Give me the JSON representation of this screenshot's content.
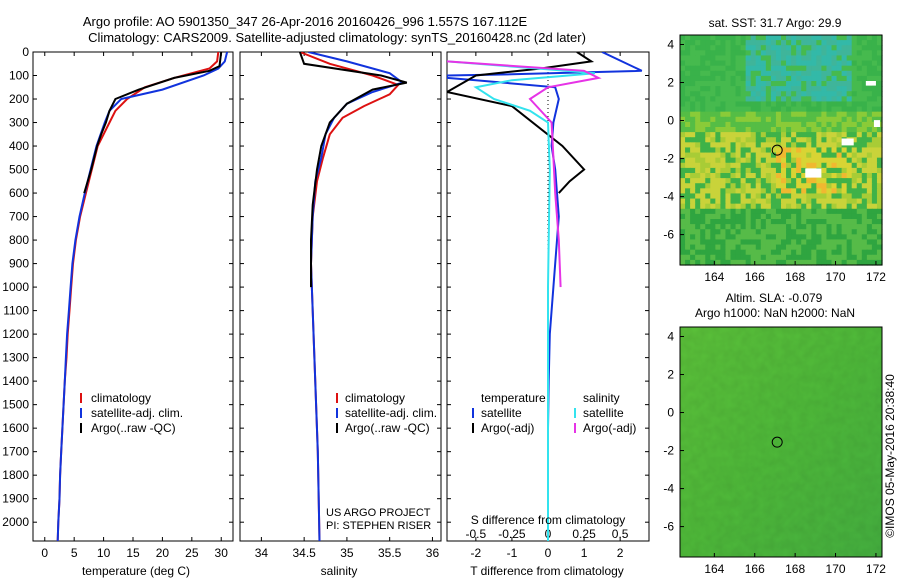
{
  "header": {
    "line1": "Argo profile: AO 5901350_347 26-Apr-2016 20160426_996 1.557S 167.112E",
    "line2": "Climatology: CARS2009. Satellite-adjusted climatology: synTS_20160428.nc (2d later)"
  },
  "colors": {
    "climatology": "#dd1111",
    "satellite": "#1133dd",
    "argo": "#000000",
    "sal_satellite": "#33e3ee",
    "sal_argo": "#e633e6"
  },
  "chart_data": [
    {
      "type": "line",
      "id": "temperature",
      "xlabel": "temperature (deg C)",
      "xticks": [
        0,
        5,
        10,
        15,
        20,
        25,
        30
      ],
      "xlim": [
        -2,
        32
      ],
      "ylim": [
        2080,
        0
      ],
      "yticks": [
        0,
        100,
        200,
        300,
        400,
        500,
        600,
        700,
        800,
        900,
        1000,
        1100,
        1200,
        1300,
        1400,
        1500,
        1600,
        1700,
        1800,
        1900,
        2000
      ],
      "legend": [
        "climatology",
        "satellite-adj. clim.",
        "Argo(..raw -QC)"
      ],
      "series": [
        {
          "name": "climatology",
          "color_key": "climatology",
          "points": [
            [
              29.5,
              0
            ],
            [
              29.3,
              40
            ],
            [
              28,
              70
            ],
            [
              22,
              110
            ],
            [
              17,
              150
            ],
            [
              14,
              200
            ],
            [
              12,
              250
            ],
            [
              11,
              300
            ],
            [
              10,
              350
            ],
            [
              9,
              400
            ],
            [
              8,
              500
            ],
            [
              7,
              600
            ],
            [
              6,
              700
            ],
            [
              5.3,
              800
            ],
            [
              4.8,
              900
            ],
            [
              4.5,
              1000
            ],
            [
              4.2,
              1100
            ],
            [
              3.9,
              1200
            ],
            [
              3.7,
              1300
            ],
            [
              3.4,
              1400
            ],
            [
              3.2,
              1500
            ],
            [
              3,
              1600
            ],
            [
              2.8,
              1700
            ],
            [
              2.6,
              1800
            ],
            [
              2.5,
              1900
            ],
            [
              2.3,
              2000
            ],
            [
              2.2,
              2080
            ]
          ]
        },
        {
          "name": "satellite-adj. clim.",
          "color_key": "satellite",
          "points": [
            [
              31,
              0
            ],
            [
              30.6,
              40
            ],
            [
              29.5,
              70
            ],
            [
              27,
              100
            ],
            [
              20,
              160
            ],
            [
              13,
              200
            ],
            [
              11,
              250
            ],
            [
              10.2,
              300
            ],
            [
              9.5,
              350
            ],
            [
              8.8,
              400
            ],
            [
              7.8,
              500
            ],
            [
              6.8,
              600
            ],
            [
              5.9,
              700
            ],
            [
              5.2,
              800
            ],
            [
              4.7,
              900
            ],
            [
              4.4,
              1000
            ],
            [
              4.1,
              1100
            ],
            [
              3.8,
              1200
            ],
            [
              3.6,
              1300
            ],
            [
              3.4,
              1400
            ],
            [
              3.2,
              1500
            ],
            [
              3,
              1600
            ],
            [
              2.8,
              1700
            ],
            [
              2.6,
              1800
            ],
            [
              2.5,
              1900
            ],
            [
              2.3,
              2000
            ],
            [
              2.2,
              2080
            ]
          ]
        },
        {
          "name": "Argo(..raw -QC)",
          "color_key": "argo",
          "points": [
            [
              30,
              0
            ],
            [
              29.7,
              60
            ],
            [
              28,
              80
            ],
            [
              22,
              110
            ],
            [
              16,
              160
            ],
            [
              12,
              200
            ],
            [
              11,
              250
            ],
            [
              10.4,
              300
            ],
            [
              9.6,
              350
            ],
            [
              8.9,
              400
            ],
            [
              7.9,
              500
            ],
            [
              6.7,
              600
            ]
          ]
        }
      ],
      "annotations": []
    },
    {
      "type": "line",
      "id": "salinity",
      "xlabel": "salinity",
      "xticks": [
        34,
        34.5,
        35,
        35.5,
        36
      ],
      "xlim": [
        33.75,
        36.1
      ],
      "ylim": [
        2080,
        0
      ],
      "legend": [
        "climatology",
        "satellite-adj. clim.",
        "Argo(..raw -QC)"
      ],
      "series": [
        {
          "name": "climatology",
          "color_key": "climatology",
          "points": [
            [
              34.45,
              0
            ],
            [
              34.8,
              50
            ],
            [
              35.3,
              100
            ],
            [
              35.6,
              140
            ],
            [
              35.5,
              180
            ],
            [
              35.2,
              230
            ],
            [
              34.95,
              280
            ],
            [
              34.8,
              350
            ],
            [
              34.72,
              450
            ],
            [
              34.65,
              550
            ],
            [
              34.6,
              700
            ],
            [
              34.58,
              900
            ],
            [
              34.6,
              1100
            ],
            [
              34.62,
              1300
            ],
            [
              34.64,
              1500
            ],
            [
              34.66,
              1700
            ],
            [
              34.67,
              1900
            ],
            [
              34.68,
              2080
            ]
          ]
        },
        {
          "name": "satellite-adj. clim.",
          "color_key": "satellite",
          "points": [
            [
              34.55,
              0
            ],
            [
              35,
              40
            ],
            [
              35.5,
              90
            ],
            [
              35.65,
              130
            ],
            [
              35.3,
              170
            ],
            [
              35.0,
              220
            ],
            [
              34.85,
              280
            ],
            [
              34.75,
              350
            ],
            [
              34.7,
              450
            ],
            [
              34.63,
              550
            ],
            [
              34.6,
              700
            ],
            [
              34.58,
              900
            ],
            [
              34.6,
              1100
            ],
            [
              34.62,
              1300
            ],
            [
              34.64,
              1500
            ],
            [
              34.66,
              1700
            ],
            [
              34.67,
              1900
            ],
            [
              34.68,
              2080
            ]
          ]
        },
        {
          "name": "Argo(..raw -QC)",
          "color_key": "argo",
          "points": [
            [
              34.45,
              0
            ],
            [
              34.5,
              50
            ],
            [
              35.4,
              100
            ],
            [
              35.7,
              130
            ],
            [
              35.3,
              160
            ],
            [
              35.0,
              220
            ],
            [
              34.8,
              300
            ],
            [
              34.7,
              400
            ],
            [
              34.65,
              500
            ],
            [
              34.6,
              650
            ],
            [
              34.58,
              800
            ],
            [
              34.58,
              1000
            ]
          ]
        }
      ],
      "annotations": [
        "US ARGO PROJECT",
        "PI: STEPHEN RISER"
      ]
    },
    {
      "type": "line",
      "id": "difference",
      "xlabel": "T difference from climatology",
      "xlabel2": "S difference from climatology",
      "xticks": [
        -2,
        -1,
        0,
        1,
        2
      ],
      "xticks2": [
        "-0.5",
        "-0.25",
        "0",
        "0.25",
        "0.5"
      ],
      "xlim": [
        -2.8,
        2.8
      ],
      "ylim": [
        2080,
        0
      ],
      "legend_groups": [
        {
          "title": "temperature",
          "items": [
            "satellite",
            "Argo(-adj)"
          ]
        },
        {
          "title": "salinity",
          "items": [
            "satellite",
            "Argo(-adj)"
          ]
        }
      ],
      "series": [
        {
          "name": "temperature satellite",
          "color_key": "satellite",
          "points": [
            [
              1.5,
              0
            ],
            [
              2.6,
              80
            ],
            [
              -1,
              95
            ],
            [
              -2.8,
              100
            ],
            [
              -2.8,
              110
            ],
            [
              -2,
              120
            ],
            [
              0.2,
              150
            ],
            [
              0.3,
              200
            ],
            [
              0.15,
              300
            ],
            [
              0.1,
              400
            ],
            [
              0.2,
              500
            ],
            [
              0.25,
              600
            ],
            [
              0.3,
              700
            ],
            [
              0.25,
              800
            ],
            [
              0.2,
              900
            ],
            [
              0.15,
              1000
            ],
            [
              0.1,
              1100
            ],
            [
              0.05,
              1200
            ],
            [
              0.02,
              1400
            ],
            [
              0,
              1600
            ],
            [
              0,
              2080
            ]
          ]
        },
        {
          "name": "temperature Argo(-adj)",
          "color_key": "argo",
          "points": [
            [
              0.8,
              0
            ],
            [
              1.2,
              40
            ],
            [
              -0.2,
              70
            ],
            [
              -2,
              100
            ],
            [
              -2.8,
              170
            ],
            [
              -1,
              230
            ],
            [
              0.4,
              400
            ],
            [
              1,
              500
            ],
            [
              0.6,
              550
            ],
            [
              0.3,
              600
            ]
          ]
        },
        {
          "name": "salinity satellite",
          "color_key": "sal_satellite",
          "points": [
            [
              -2.8,
              40
            ],
            [
              0.5,
              80
            ],
            [
              1.3,
              90
            ],
            [
              -1,
              120
            ],
            [
              -2,
              150
            ],
            [
              -1.5,
              200
            ],
            [
              -0.5,
              250
            ],
            [
              0,
              300
            ],
            [
              0.05,
              500
            ],
            [
              0.02,
              800
            ],
            [
              0,
              1000
            ],
            [
              0,
              2080
            ]
          ]
        },
        {
          "name": "salinity Argo(-adj)",
          "color_key": "sal_argo",
          "points": [
            [
              -2.8,
              40
            ],
            [
              1,
              80
            ],
            [
              1.4,
              110
            ],
            [
              0,
              150
            ],
            [
              -0.5,
              200
            ],
            [
              0.1,
              300
            ],
            [
              0.2,
              600
            ],
            [
              0.3,
              800
            ],
            [
              0.35,
              1000
            ]
          ]
        }
      ],
      "annotations": []
    }
  ],
  "maps": [
    {
      "id": "sst",
      "title": "sat. SST: 31.7 Argo: 29.9",
      "xticks": [
        "164",
        "166",
        "168",
        "170",
        "172"
      ],
      "yticks": [
        "4",
        "2",
        "0",
        "-2",
        "-4",
        "-6"
      ]
    },
    {
      "id": "sla",
      "title": "Altim. SLA: -0.079",
      "subtitle": "Argo h1000: NaN h2000: NaN",
      "xticks": [
        "164",
        "166",
        "168",
        "170",
        "172"
      ],
      "yticks": [
        "4",
        "2",
        "0",
        "-2",
        "-4",
        "-6"
      ]
    }
  ],
  "stamp": "©IMOS 05-May-2016 20:38:40"
}
